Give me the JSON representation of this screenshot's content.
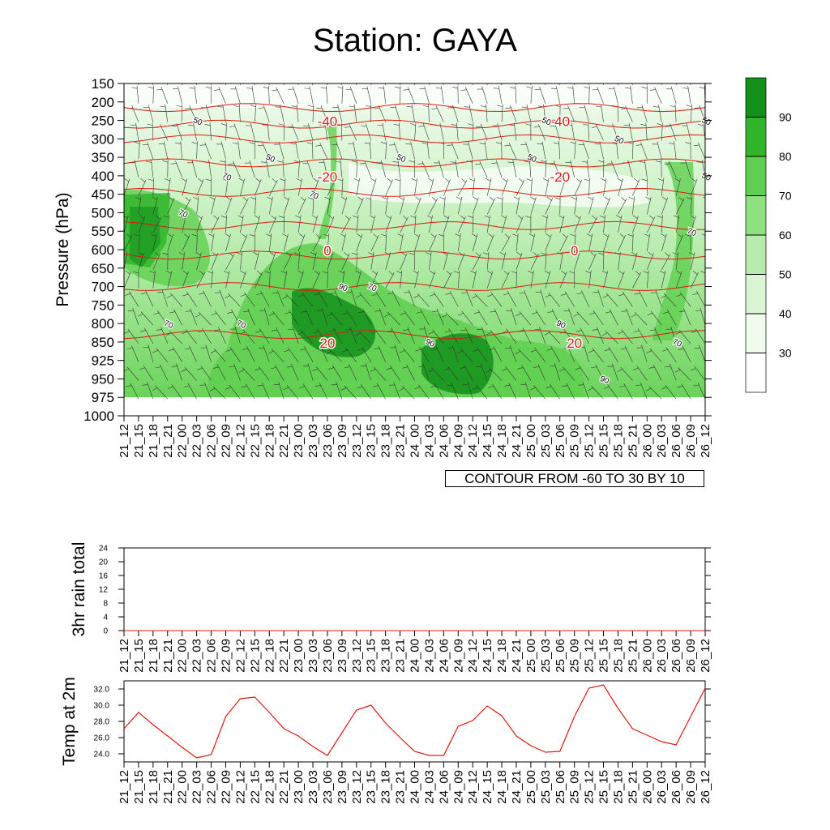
{
  "title": "Station: GAYA",
  "contour_note": "CONTOUR FROM -60 TO 30 BY 10",
  "colors": {
    "rh_fills": [
      "#ffffff",
      "#f0fbee",
      "#d9f5d3",
      "#b8ecae",
      "#8fe080",
      "#5fcf4f",
      "#2fb42a",
      "#13901a"
    ],
    "temperature_contour": "#e0190f",
    "rh_contour": "#000000",
    "temp_line": "#e0190f"
  },
  "time_labels": [
    "21_12",
    "21_15",
    "21_18",
    "21_21",
    "22_00",
    "22_03",
    "22_06",
    "22_09",
    "22_12",
    "22_15",
    "22_18",
    "22_21",
    "23_00",
    "23_03",
    "23_06",
    "23_09",
    "23_12",
    "23_15",
    "23_18",
    "23_21",
    "24_00",
    "24_03",
    "24_06",
    "24_09",
    "24_12",
    "24_15",
    "24_18",
    "24_21",
    "25_00",
    "25_03",
    "25_06",
    "25_09",
    "25_12",
    "25_15",
    "25_18",
    "25_21",
    "26_00",
    "26_03",
    "26_06",
    "26_09",
    "26_12"
  ],
  "chart_data": [
    {
      "type": "heatmap",
      "title": "Station: GAYA",
      "ylabel": "Pressure (hPa)",
      "y_ticks": [
        "150",
        "200",
        "250",
        "300",
        "350",
        "400",
        "450",
        "500",
        "550",
        "600",
        "650",
        "700",
        "750",
        "800",
        "850",
        "925",
        "950",
        "975",
        "1000"
      ],
      "colorbar_ticks": [
        "30",
        "40",
        "50",
        "60",
        "70",
        "80",
        "90"
      ],
      "colorbar_levels": [
        20,
        30,
        40,
        50,
        60,
        70,
        80,
        90,
        100
      ],
      "temperature_contour_labels": [
        {
          "label": "-40",
          "time": "23_06",
          "level": "250"
        },
        {
          "label": "-40",
          "time": "25_06",
          "level": "250"
        },
        {
          "label": "-20",
          "time": "23_06",
          "level": "400"
        },
        {
          "label": "-20",
          "time": "25_06",
          "level": "400"
        },
        {
          "label": "0",
          "time": "23_06",
          "level": "600"
        },
        {
          "label": "0",
          "time": "25_09",
          "level": "600"
        },
        {
          "label": "20",
          "time": "23_06",
          "level": "850"
        },
        {
          "label": "20",
          "time": "25_09",
          "level": "850"
        }
      ],
      "rh_contour_labels": [
        "50",
        "50",
        "50",
        "50",
        "50",
        "50",
        "50",
        "50",
        "70",
        "70",
        "70",
        "70",
        "70",
        "70",
        "70",
        "70",
        "90",
        "90",
        "90",
        "90"
      ]
    },
    {
      "type": "line",
      "ylabel": "3hr rain total",
      "y_ticks": [
        "0",
        "4",
        "8",
        "12",
        "16",
        "20",
        "24"
      ],
      "ylim": [
        0,
        24
      ],
      "values": [
        0,
        0,
        0,
        0,
        0,
        0,
        0,
        0,
        0,
        0,
        0,
        0,
        0,
        0,
        0,
        0,
        0,
        0,
        0,
        0,
        0,
        0,
        0,
        0,
        0,
        0,
        0,
        0,
        0,
        0,
        0,
        0,
        0,
        0,
        0,
        0,
        0,
        0,
        0,
        0,
        0
      ]
    },
    {
      "type": "line",
      "ylabel": "Temp at 2m",
      "y_ticks": [
        "24.0",
        "26.0",
        "28.0",
        "30.0",
        "32.0"
      ],
      "ylim": [
        23.0,
        33.0
      ],
      "values": [
        27.1,
        29.1,
        27.6,
        26.2,
        24.8,
        23.5,
        23.9,
        28.6,
        30.8,
        31.0,
        29.1,
        27.1,
        26.2,
        24.9,
        23.8,
        26.6,
        29.4,
        30.0,
        27.8,
        26.0,
        24.3,
        23.8,
        23.8,
        27.4,
        28.1,
        29.9,
        28.7,
        26.2,
        25.0,
        24.2,
        24.3,
        28.6,
        32.1,
        32.5,
        29.6,
        27.1,
        26.3,
        25.5,
        25.1,
        28.6,
        32.1
      ]
    }
  ]
}
